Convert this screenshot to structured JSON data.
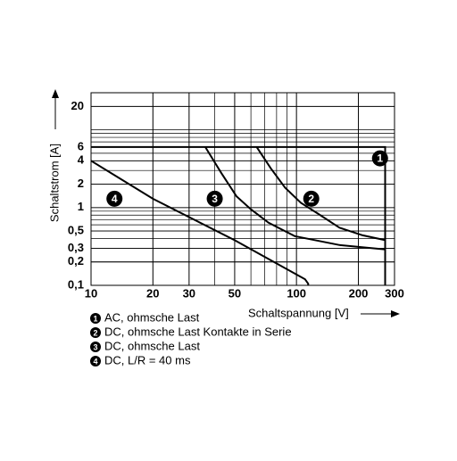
{
  "chart_data": {
    "type": "line",
    "y_label": "Schaltstrom [A]",
    "x_label": "Schaltspannung [V]",
    "log_x": true,
    "log_y": true,
    "grid": true,
    "xlim": [
      10,
      300
    ],
    "ylim": [
      0.1,
      30
    ],
    "xticks": [
      10,
      20,
      30,
      50,
      100,
      200,
      300
    ],
    "yticks": [
      {
        "value": 0.1,
        "label": "0,1"
      },
      {
        "value": 0.2,
        "label": "0,2"
      },
      {
        "value": 0.3,
        "label": "0,3"
      },
      {
        "value": 0.5,
        "label": "0,5"
      },
      1,
      2,
      4,
      6,
      20
    ],
    "series": [
      {
        "label": "1",
        "name": "AC, ohmsche Last",
        "color": "#000000",
        "x": [
          10,
          270,
          270
        ],
        "values": [
          6,
          6,
          0.1
        ],
        "label_at": [
          255,
          4.3
        ]
      },
      {
        "label": "2",
        "name": "DC, ohmsche Last Kontakte in Serie",
        "color": "#000000",
        "x": [
          64,
          75,
          88,
          105,
          126,
          162,
          210,
          271
        ],
        "values": [
          6,
          3.2,
          1.8,
          1.15,
          0.85,
          0.55,
          0.44,
          0.38
        ],
        "label_at": [
          118,
          1.3
        ]
      },
      {
        "label": "3",
        "name": "DC, ohmsche Last",
        "color": "#000000",
        "x": [
          36,
          43,
          51,
          60,
          73,
          98,
          162,
          271
        ],
        "values": [
          6,
          2.8,
          1.4,
          0.95,
          0.64,
          0.43,
          0.33,
          0.29
        ],
        "label_at": [
          40,
          1.3
        ]
      },
      {
        "label": "4",
        "name": "DC, L/R = 40 ms",
        "color": "#000000",
        "x": [
          10,
          20,
          50,
          110,
          114,
          114
        ],
        "values": [
          4,
          1.3,
          0.38,
          0.12,
          0.105,
          0.1
        ],
        "label_at": [
          13,
          1.3
        ]
      }
    ]
  }
}
